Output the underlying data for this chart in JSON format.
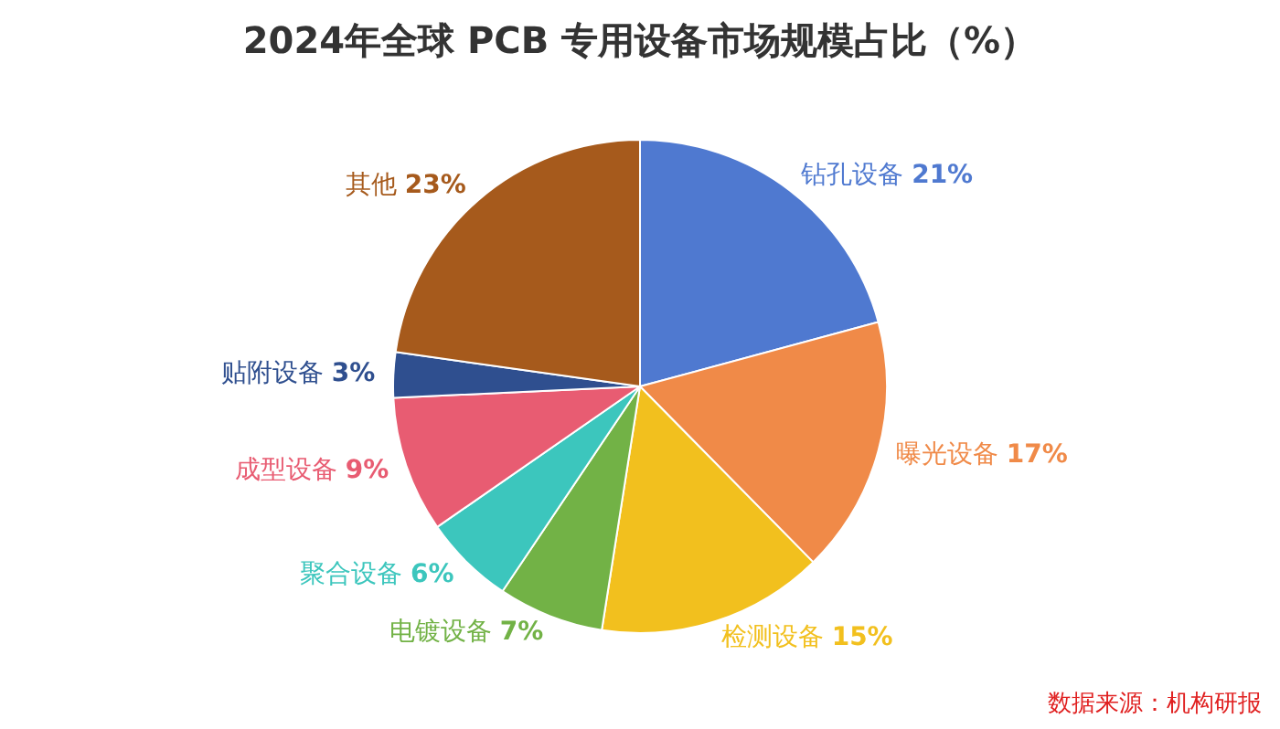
{
  "chart_data": {
    "type": "pie",
    "title": "2024年全球 PCB 专用设备市场规模占比（%）",
    "categories": [
      "钻孔设备",
      "曝光设备",
      "检测设备",
      "电镀设备",
      "聚合设备",
      "成型设备",
      "贴附设备",
      "其他"
    ],
    "values": [
      21,
      17,
      15,
      7,
      6,
      9,
      3,
      23
    ],
    "value_labels": [
      "21%",
      "17%",
      "15%",
      "7%",
      "6%",
      "9%",
      "3%",
      "23%"
    ],
    "colors": [
      "#4f79d0",
      "#f08a48",
      "#f2c01e",
      "#72b246",
      "#3cc6bd",
      "#e85c72",
      "#2f4f8f",
      "#a65a1c"
    ],
    "annotations": [
      "数据来源：机构研报"
    ],
    "legend": false
  }
}
